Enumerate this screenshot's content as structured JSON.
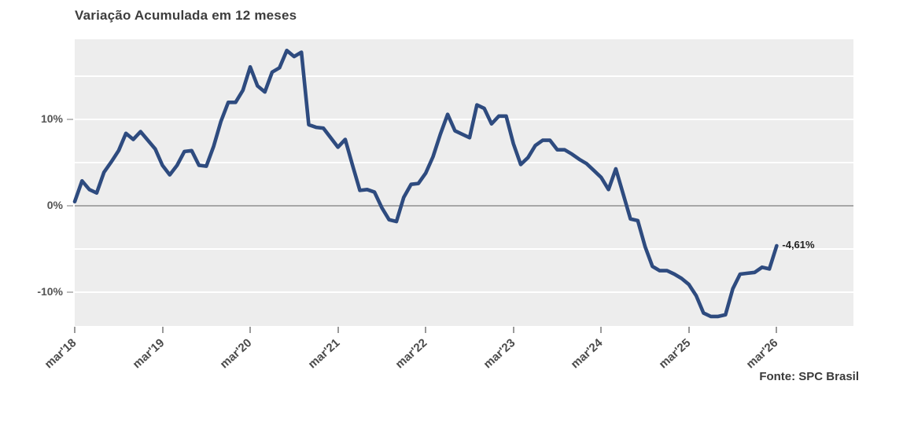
{
  "chart_data": {
    "type": "line",
    "title": "Variação Acumulada em 12 meses",
    "series_name": "Variação acumulada em 12 meses (%)",
    "x_frequency": "monthly",
    "x_start": "mar/2018",
    "x_end": "mar/2026",
    "values": [
      0.5,
      2.9,
      1.9,
      1.5,
      3.9,
      5.1,
      6.4,
      8.4,
      7.7,
      8.6,
      7.6,
      6.6,
      4.7,
      3.6,
      4.7,
      6.3,
      6.4,
      4.7,
      4.6,
      6.9,
      9.8,
      12.0,
      12.0,
      13.4,
      16.1,
      13.9,
      13.2,
      15.5,
      16.0,
      18.0,
      17.3,
      17.8,
      9.4,
      9.1,
      9.0,
      7.9,
      6.8,
      7.7,
      4.7,
      1.8,
      1.9,
      1.6,
      -0.2,
      -1.6,
      -1.8,
      1.0,
      2.5,
      2.6,
      3.8,
      5.7,
      8.3,
      10.6,
      8.7,
      8.3,
      7.9,
      11.7,
      11.3,
      9.5,
      10.4,
      10.4,
      7.2,
      4.8,
      5.6,
      7.0,
      7.6,
      7.6,
      6.5,
      6.5,
      6.0,
      5.4,
      4.9,
      4.1,
      3.3,
      1.9,
      4.3,
      1.4,
      -1.5,
      -1.7,
      -4.7,
      -7.0,
      -7.5,
      -7.5,
      -7.9,
      -8.4,
      -9.1,
      -10.4,
      -12.4,
      -12.8,
      -12.8,
      -12.6,
      -9.6,
      -7.9,
      -7.8,
      -7.7,
      -7.1,
      -7.3,
      -4.61
    ],
    "x_tick_labels": [
      "mar'18",
      "mar'19",
      "mar'20",
      "mar'21",
      "mar'22",
      "mar'23",
      "mar'24",
      "mar'25",
      "mar'26"
    ],
    "x_tick_month_indices": [
      0,
      12,
      24,
      36,
      48,
      60,
      72,
      84,
      96
    ],
    "y_tick_labels": [
      "10%",
      "0%",
      "-10%"
    ],
    "y_tick_values": [
      10,
      0,
      -10
    ],
    "gridline_values": [
      15,
      10,
      5,
      -5,
      -10
    ],
    "zero_line_value": 0,
    "ylim": [
      -13.9,
      19.3
    ],
    "xlim_month_index": [
      0,
      106.5
    ],
    "grid": "horizontal-only",
    "legend": "none",
    "end_label": "-4,61%",
    "last_value": -4.61,
    "source": "Fonte: SPC Brasil",
    "line_color": "#2E4B7F",
    "plot_bg": "#EDEDED"
  }
}
